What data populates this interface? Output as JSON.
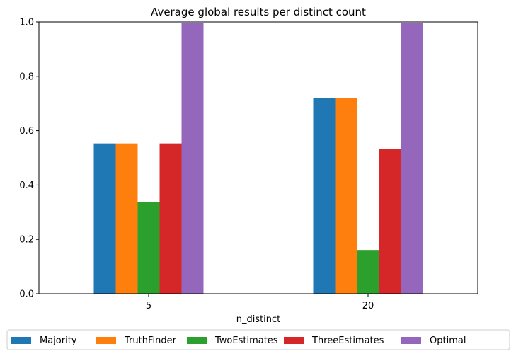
{
  "chart_data": {
    "type": "bar",
    "title": "Average global results per distinct count",
    "xlabel": "n_distinct",
    "ylabel": "",
    "categories": [
      "5",
      "20"
    ],
    "ylim": [
      0,
      1
    ],
    "yticks": [
      "0.0",
      "0.2",
      "0.4",
      "0.6",
      "0.8",
      "1.0"
    ],
    "grid": false,
    "legend_position": "bottom",
    "series": [
      {
        "name": "Majority",
        "color": "#1f77b4",
        "values": [
          0.553,
          0.719
        ]
      },
      {
        "name": "TruthFinder",
        "color": "#ff7f0e",
        "values": [
          0.553,
          0.719
        ]
      },
      {
        "name": "TwoEstimates",
        "color": "#2ca02c",
        "values": [
          0.337,
          0.161
        ]
      },
      {
        "name": "ThreeEstimates",
        "color": "#d62728",
        "values": [
          0.553,
          0.532
        ]
      },
      {
        "name": "Optimal",
        "color": "#9467bd",
        "values": [
          0.995,
          0.995
        ]
      }
    ]
  }
}
